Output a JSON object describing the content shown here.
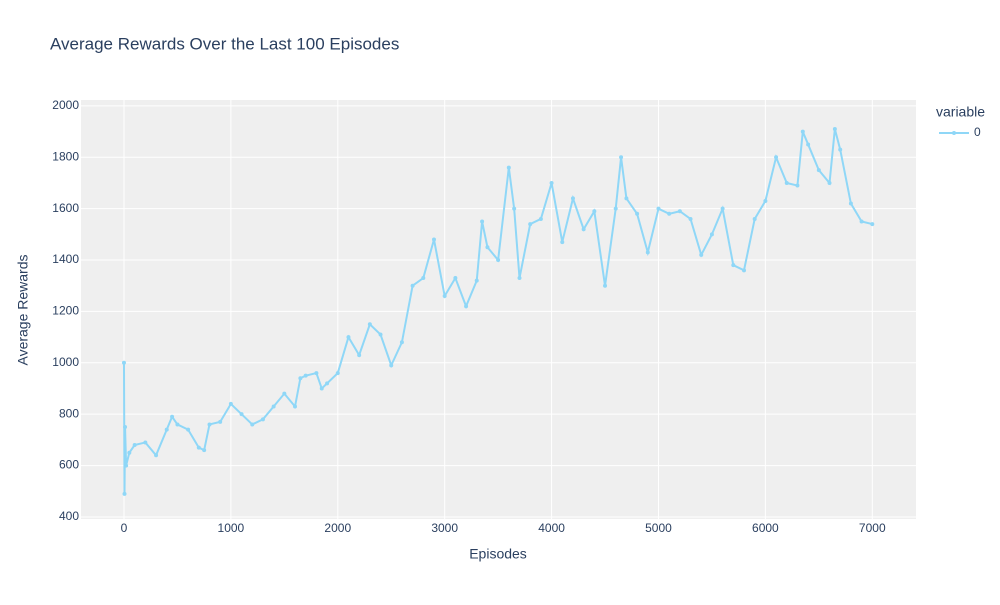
{
  "chart_data": {
    "type": "line",
    "title": "Average Rewards Over the Last 100 Episodes",
    "x_label": "Episodes",
    "y_label": "Average Rewards",
    "legend_title": "variable",
    "x": [
      0,
      5,
      10,
      20,
      50,
      100,
      200,
      300,
      400,
      450,
      500,
      600,
      700,
      750,
      800,
      900,
      1000,
      1100,
      1200,
      1300,
      1400,
      1500,
      1600,
      1650,
      1700,
      1800,
      1850,
      1900,
      2000,
      2100,
      2200,
      2300,
      2400,
      2500,
      2600,
      2700,
      2800,
      2900,
      3000,
      3100,
      3200,
      3300,
      3350,
      3400,
      3500,
      3600,
      3650,
      3700,
      3800,
      3900,
      4000,
      4100,
      4200,
      4300,
      4400,
      4500,
      4600,
      4650,
      4700,
      4800,
      4900,
      5000,
      5100,
      5200,
      5300,
      5400,
      5500,
      5600,
      5700,
      5800,
      5900,
      6000,
      6100,
      6200,
      6300,
      6350,
      6400,
      6500,
      6600,
      6650,
      6700,
      6800,
      6900,
      7000
    ],
    "series": [
      {
        "name": "0",
        "color": "#8fd7f7",
        "values": [
          1000,
          490,
          750,
          600,
          650,
          680,
          690,
          640,
          740,
          790,
          760,
          740,
          670,
          660,
          760,
          770,
          840,
          800,
          760,
          780,
          830,
          880,
          830,
          940,
          950,
          960,
          900,
          920,
          960,
          1100,
          1030,
          1150,
          1110,
          990,
          1080,
          1300,
          1330,
          1480,
          1260,
          1330,
          1220,
          1320,
          1550,
          1450,
          1400,
          1760,
          1600,
          1330,
          1540,
          1560,
          1700,
          1470,
          1640,
          1520,
          1590,
          1300,
          1600,
          1800,
          1640,
          1580,
          1430,
          1600,
          1580,
          1590,
          1560,
          1420,
          1500,
          1600,
          1380,
          1360,
          1560,
          1630,
          1800,
          1700,
          1690,
          1900,
          1850,
          1750,
          1700,
          1910,
          1830,
          1620,
          1550,
          1540
        ]
      }
    ],
    "xlim": [
      -402,
      7409
    ],
    "ylim": [
      392,
      2023
    ],
    "xticks": [
      0,
      1000,
      2000,
      3000,
      4000,
      5000,
      6000,
      7000
    ],
    "yticks": [
      400,
      600,
      800,
      1000,
      1200,
      1400,
      1600,
      1800,
      2000
    ],
    "grid": true
  }
}
